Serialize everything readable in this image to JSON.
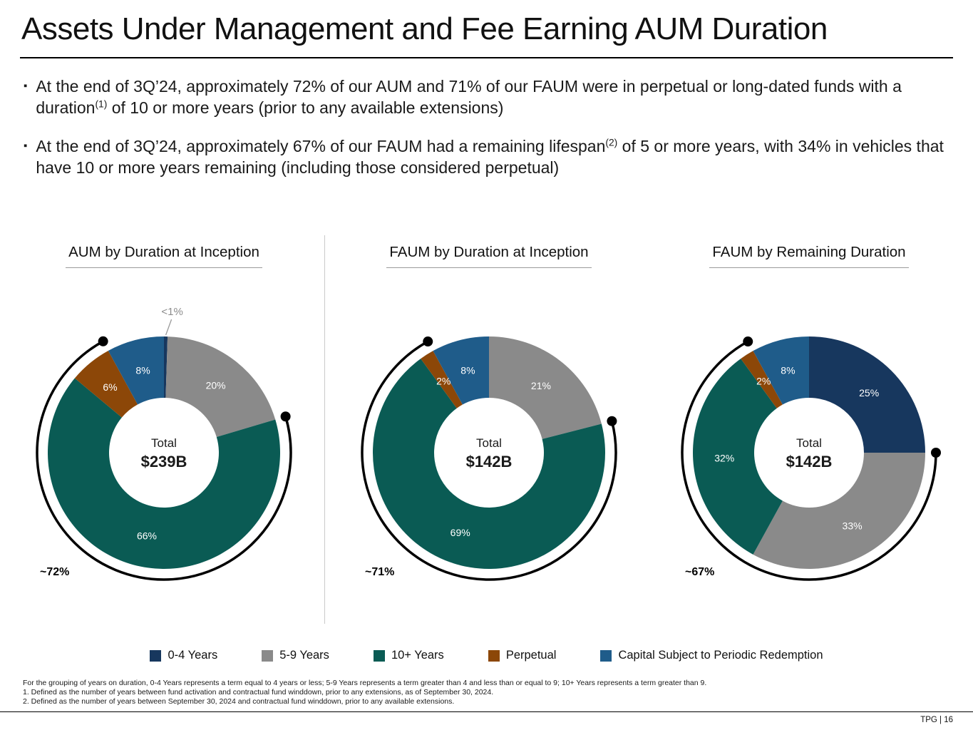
{
  "page": {
    "title": "Assets Under Management and Fee Earning AUM Duration",
    "page_number": "TPG | 16"
  },
  "bullets": [
    {
      "before": "At the end of 3Q’24, approximately 72% of our AUM and 71% of our FAUM were in perpetual or long-dated funds with a duration",
      "sup": "(1)",
      "after": " of 10 or more years (prior to any available extensions)"
    },
    {
      "before": "At the end of 3Q’24, approximately 67% of our FAUM had a remaining lifespan",
      "sup": "(2)",
      "after": " of 5 or more years, with 34% in vehicles that have 10 or more years remaining (including those considered perpetual)"
    }
  ],
  "chart_data": [
    {
      "type": "pie",
      "title": "AUM by Duration at Inception",
      "center_label": "Total",
      "center_value": "$239B",
      "segments": [
        {
          "name": "0-4 Years",
          "value": 0.5,
          "label": "<1%",
          "callout": true,
          "color": "#17375e"
        },
        {
          "name": "5-9 Years",
          "value": 20,
          "label": "20%",
          "color": "#8a8a8a"
        },
        {
          "name": "10+ Years",
          "value": 66,
          "label": "66%",
          "color": "#0a5b54"
        },
        {
          "name": "Perpetual",
          "value": 6,
          "label": "6%",
          "color": "#8c4708"
        },
        {
          "name": "Capital Subject to Periodic Redemption",
          "value": 8,
          "label": "8%",
          "color": "#1f5c8a"
        }
      ],
      "arc": {
        "label": "~72%",
        "from_segment": 2,
        "to_segment": 3
      }
    },
    {
      "type": "pie",
      "title": "FAUM by Duration at Inception",
      "center_label": "Total",
      "center_value": "$142B",
      "segments": [
        {
          "name": "0-4 Years",
          "value": 0,
          "label": "",
          "color": "#17375e"
        },
        {
          "name": "5-9 Years",
          "value": 21,
          "label": "21%",
          "color": "#8a8a8a"
        },
        {
          "name": "10+ Years",
          "value": 69,
          "label": "69%",
          "color": "#0a5b54"
        },
        {
          "name": "Perpetual",
          "value": 2,
          "label": "2%",
          "color": "#8c4708"
        },
        {
          "name": "Capital Subject to Periodic Redemption",
          "value": 8,
          "label": "8%",
          "color": "#1f5c8a"
        }
      ],
      "arc": {
        "label": "~71%",
        "from_segment": 2,
        "to_segment": 3
      }
    },
    {
      "type": "pie",
      "title": "FAUM by Remaining Duration",
      "center_label": "Total",
      "center_value": "$142B",
      "segments": [
        {
          "name": "0-4 Years",
          "value": 25,
          "label": "25%",
          "color": "#17375e"
        },
        {
          "name": "5-9 Years",
          "value": 33,
          "label": "33%",
          "color": "#8a8a8a"
        },
        {
          "name": "10+ Years",
          "value": 32,
          "label": "32%",
          "color": "#0a5b54"
        },
        {
          "name": "Perpetual",
          "value": 2,
          "label": "2%",
          "color": "#8c4708"
        },
        {
          "name": "Capital Subject to Periodic Redemption",
          "value": 8,
          "label": "8%",
          "color": "#1f5c8a"
        }
      ],
      "arc": {
        "label": "~67%",
        "from_segment": 1,
        "to_segment": 3
      }
    }
  ],
  "legend": [
    {
      "label": "0-4 Years",
      "color": "#17375e"
    },
    {
      "label": "5-9 Years",
      "color": "#8a8a8a"
    },
    {
      "label": "10+ Years",
      "color": "#0a5b54"
    },
    {
      "label": "Perpetual",
      "color": "#8c4708"
    },
    {
      "label": "Capital Subject to Periodic Redemption",
      "color": "#1f5c8a"
    }
  ],
  "footnotes": [
    "For the grouping of years on duration, 0-4 Years represents a term equal to 4 years or less; 5-9 Years represents a term greater than 4 and less than or equal to 9; 10+ Years represents a term greater than 9.",
    "1. Defined as the number of years between fund activation and contractual fund winddown, prior to any extensions, as of September 30, 2024.",
    "2. Defined as the number of years between September 30, 2024 and contractual fund winddown, prior to any available extensions."
  ]
}
